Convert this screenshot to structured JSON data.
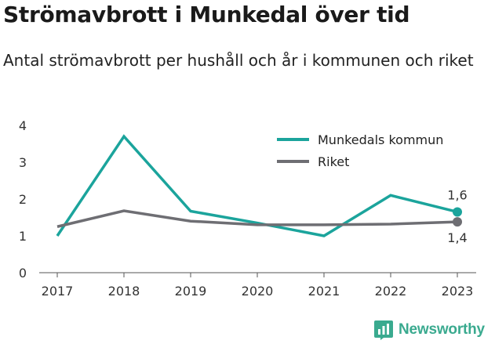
{
  "title": "Strömavbrott i Munkedal över tid",
  "subtitle": "Antal strömavbrott per hushåll och år i kommunen och riket",
  "brand": {
    "name": "Newsworthy",
    "logo_icon": "bar-chart-icon",
    "color": "#3aaa8f"
  },
  "chart_data": {
    "type": "line",
    "x": [
      "2017",
      "2018",
      "2019",
      "2020",
      "2021",
      "2022",
      "2023"
    ],
    "series": [
      {
        "name": "Munkedals kommun",
        "color": "#1ba49c",
        "values": [
          1.0,
          3.7,
          1.67,
          1.35,
          1.0,
          2.1,
          1.65
        ],
        "end_label": "1,6"
      },
      {
        "name": "Riket",
        "color": "#6e6e73",
        "values": [
          1.25,
          1.68,
          1.4,
          1.3,
          1.3,
          1.32,
          1.38
        ],
        "end_label": "1,4"
      }
    ],
    "yticks": [
      "0",
      "1",
      "2",
      "3",
      "4"
    ],
    "ylim": [
      0,
      4
    ],
    "grid": false,
    "legend": "top-right"
  }
}
